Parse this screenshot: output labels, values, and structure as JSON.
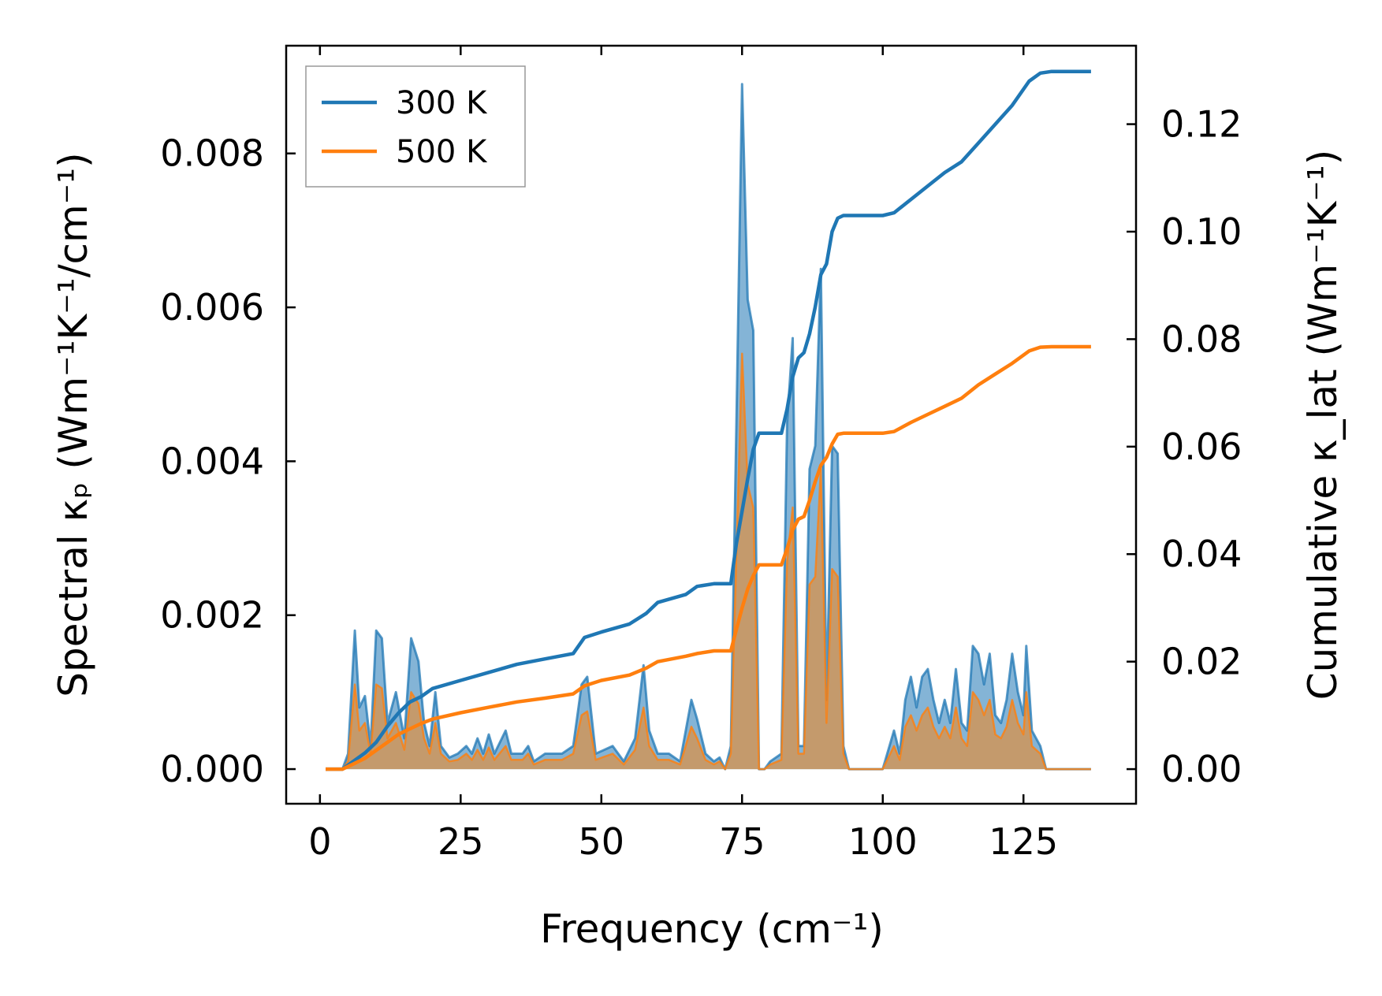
{
  "chart_data": {
    "type": "area",
    "xlabel": "Frequency (cm⁻¹)",
    "ylabel_left": "Spectral κₚ (Wm⁻¹K⁻¹/cm⁻¹)",
    "ylabel_right": "Cumulative κ_lat (Wm⁻¹K⁻¹)",
    "xlim": [
      -6,
      145
    ],
    "ylim_left": [
      -0.00045,
      0.0094
    ],
    "ylim_right": [
      -0.00644,
      0.1346
    ],
    "xticks": [
      0,
      25,
      50,
      75,
      100,
      125
    ],
    "xtick_labels": [
      "0",
      "25",
      "50",
      "75",
      "100",
      "125"
    ],
    "yticks_left": [
      0.0,
      0.002,
      0.004,
      0.006,
      0.008
    ],
    "ytick_labels_left": [
      "0.000",
      "0.002",
      "0.004",
      "0.006",
      "0.008"
    ],
    "yticks_right": [
      0.0,
      0.02,
      0.04,
      0.06,
      0.08,
      0.1,
      0.12
    ],
    "ytick_labels_right": [
      "0.00",
      "0.02",
      "0.04",
      "0.06",
      "0.08",
      "0.10",
      "0.12"
    ],
    "legend": {
      "position": "top-left",
      "entries": [
        "300 K",
        "500 K"
      ]
    },
    "colors": {
      "s300": "#1f77b4",
      "s500": "#ff7f0e",
      "fill500": "#c49a6c"
    },
    "spectral_300K": [
      [
        1,
        0
      ],
      [
        4,
        0
      ],
      [
        5,
        0.0002
      ],
      [
        6.2,
        0.0018
      ],
      [
        7,
        0.0008
      ],
      [
        8,
        0.00095
      ],
      [
        9,
        0.0003
      ],
      [
        10,
        0.0018
      ],
      [
        11,
        0.0017
      ],
      [
        12,
        0.0006
      ],
      [
        13.5,
        0.001
      ],
      [
        15,
        0.0004
      ],
      [
        16.2,
        0.0017
      ],
      [
        17.5,
        0.0014
      ],
      [
        18.5,
        0.0006
      ],
      [
        19.5,
        0.0003
      ],
      [
        20.5,
        0.001
      ],
      [
        21.5,
        0.0003
      ],
      [
        23,
        0.00015
      ],
      [
        24.5,
        0.0002
      ],
      [
        26,
        0.0003
      ],
      [
        27,
        0.0002
      ],
      [
        28,
        0.0004
      ],
      [
        29,
        0.0002
      ],
      [
        30,
        0.00045
      ],
      [
        31,
        0.0002
      ],
      [
        33,
        0.0005
      ],
      [
        34,
        0.0002
      ],
      [
        36,
        0.0002
      ],
      [
        37,
        0.0003
      ],
      [
        38,
        0.0001
      ],
      [
        40,
        0.0002
      ],
      [
        43,
        0.0002
      ],
      [
        45,
        0.0003
      ],
      [
        46.5,
        0.0011
      ],
      [
        47.5,
        0.0012
      ],
      [
        49,
        0.0002
      ],
      [
        52,
        0.0003
      ],
      [
        54,
        0.0001
      ],
      [
        56,
        0.0004
      ],
      [
        57.5,
        0.00135
      ],
      [
        58.5,
        0.0005
      ],
      [
        60,
        0.0002
      ],
      [
        62,
        0.0002
      ],
      [
        64,
        0.0001
      ],
      [
        66,
        0.0009
      ],
      [
        67,
        0.00065
      ],
      [
        68.5,
        0.0002
      ],
      [
        70,
        0.0001
      ],
      [
        71,
        0.00015
      ],
      [
        72,
        0
      ],
      [
        73,
        0.0003
      ],
      [
        74,
        0.0045
      ],
      [
        75,
        0.0089
      ],
      [
        76,
        0.0061
      ],
      [
        77,
        0.0057
      ],
      [
        78,
        0
      ],
      [
        79,
        0
      ],
      [
        80,
        0.0001
      ],
      [
        82,
        0.0002
      ],
      [
        83,
        0.0045
      ],
      [
        84,
        0.0056
      ],
      [
        85,
        0.0003
      ],
      [
        86,
        0.0003
      ],
      [
        87,
        0.0039
      ],
      [
        88,
        0.0042
      ],
      [
        89,
        0.0065
      ],
      [
        90,
        0.0009
      ],
      [
        91,
        0.0042
      ],
      [
        92,
        0.0041
      ],
      [
        93,
        0.0003
      ],
      [
        94,
        0
      ],
      [
        100,
        0
      ],
      [
        102,
        0.0005
      ],
      [
        103,
        0.0002
      ],
      [
        104,
        0.0009
      ],
      [
        105,
        0.0012
      ],
      [
        106,
        0.0008
      ],
      [
        107,
        0.0012
      ],
      [
        108,
        0.0013
      ],
      [
        109,
        0.0009
      ],
      [
        110,
        0.0006
      ],
      [
        111,
        0.0009
      ],
      [
        112,
        0.0006
      ],
      [
        113,
        0.0013
      ],
      [
        114,
        0.0006
      ],
      [
        115,
        0.0005
      ],
      [
        116,
        0.0016
      ],
      [
        117,
        0.0015
      ],
      [
        118,
        0.0011
      ],
      [
        119,
        0.0015
      ],
      [
        120,
        0.0007
      ],
      [
        121,
        0.0006
      ],
      [
        122,
        0.0009
      ],
      [
        123,
        0.0015
      ],
      [
        124,
        0.001
      ],
      [
        125,
        0.0007
      ],
      [
        125.5,
        0.0016
      ],
      [
        126.5,
        0.0005
      ],
      [
        128,
        0.0003
      ],
      [
        129,
        0
      ],
      [
        137,
        0
      ]
    ],
    "spectral_500K": [
      [
        1,
        0
      ],
      [
        4,
        0
      ],
      [
        5,
        0.0001
      ],
      [
        6.2,
        0.0011
      ],
      [
        7,
        0.0005
      ],
      [
        8,
        0.0006
      ],
      [
        9,
        0.0002
      ],
      [
        10,
        0.0011
      ],
      [
        11,
        0.00105
      ],
      [
        12,
        0.0004
      ],
      [
        13.5,
        0.0006
      ],
      [
        15,
        0.00025
      ],
      [
        16.2,
        0.001
      ],
      [
        17.5,
        0.00085
      ],
      [
        18.5,
        0.0004
      ],
      [
        19.5,
        0.0002
      ],
      [
        20.5,
        0.0006
      ],
      [
        21.5,
        0.0002
      ],
      [
        23,
        0.0001
      ],
      [
        24.5,
        0.00012
      ],
      [
        26,
        0.0002
      ],
      [
        27,
        0.00012
      ],
      [
        28,
        0.00025
      ],
      [
        29,
        0.00012
      ],
      [
        30,
        0.00028
      ],
      [
        31,
        0.00012
      ],
      [
        33,
        0.0003
      ],
      [
        34,
        0.00012
      ],
      [
        36,
        0.00012
      ],
      [
        37,
        0.0002
      ],
      [
        38,
        6e-05
      ],
      [
        40,
        0.00012
      ],
      [
        43,
        0.00012
      ],
      [
        45,
        0.0002
      ],
      [
        46.5,
        0.0007
      ],
      [
        47.5,
        0.00075
      ],
      [
        49,
        0.00012
      ],
      [
        52,
        0.0002
      ],
      [
        54,
        6e-05
      ],
      [
        56,
        0.00025
      ],
      [
        57.5,
        0.0008
      ],
      [
        58.5,
        0.0003
      ],
      [
        60,
        0.00012
      ],
      [
        62,
        0.00012
      ],
      [
        64,
        6e-05
      ],
      [
        66,
        0.00055
      ],
      [
        67,
        0.0004
      ],
      [
        68.5,
        0.00012
      ],
      [
        70,
        6e-05
      ],
      [
        71,
        0.0001
      ],
      [
        72,
        0
      ],
      [
        73,
        0.0002
      ],
      [
        74,
        0.0028
      ],
      [
        75,
        0.0054
      ],
      [
        76,
        0.0037
      ],
      [
        77,
        0.0034
      ],
      [
        78,
        0
      ],
      [
        79,
        0
      ],
      [
        80,
        6e-05
      ],
      [
        82,
        0.00012
      ],
      [
        83,
        0.0027
      ],
      [
        84,
        0.0034
      ],
      [
        85,
        0.0002
      ],
      [
        86,
        0.0002
      ],
      [
        87,
        0.0024
      ],
      [
        88,
        0.0025
      ],
      [
        89,
        0.0039
      ],
      [
        90,
        0.0006
      ],
      [
        91,
        0.0026
      ],
      [
        92,
        0.0025
      ],
      [
        93,
        0.0002
      ],
      [
        94,
        0
      ],
      [
        100,
        0
      ],
      [
        102,
        0.0003
      ],
      [
        103,
        0.00012
      ],
      [
        104,
        0.00055
      ],
      [
        105,
        0.0007
      ],
      [
        106,
        0.0005
      ],
      [
        107,
        0.0007
      ],
      [
        108,
        0.0008
      ],
      [
        109,
        0.00055
      ],
      [
        110,
        0.0004
      ],
      [
        111,
        0.00055
      ],
      [
        112,
        0.0004
      ],
      [
        113,
        0.0008
      ],
      [
        114,
        0.0004
      ],
      [
        115,
        0.0003
      ],
      [
        116,
        0.001
      ],
      [
        117,
        0.0009
      ],
      [
        118,
        0.0007
      ],
      [
        119,
        0.0009
      ],
      [
        120,
        0.00045
      ],
      [
        121,
        0.0004
      ],
      [
        122,
        0.00055
      ],
      [
        123,
        0.0009
      ],
      [
        124,
        0.0006
      ],
      [
        125,
        0.00045
      ],
      [
        125.5,
        0.001
      ],
      [
        126.5,
        0.0003
      ],
      [
        128,
        0.0002
      ],
      [
        129,
        0
      ],
      [
        137,
        0
      ]
    ],
    "cumulative_300K": [
      [
        1,
        0
      ],
      [
        4,
        0
      ],
      [
        6,
        0.0015
      ],
      [
        8,
        0.003
      ],
      [
        10,
        0.005
      ],
      [
        12,
        0.008
      ],
      [
        14,
        0.0105
      ],
      [
        16,
        0.0125
      ],
      [
        18,
        0.0135
      ],
      [
        20,
        0.015
      ],
      [
        25,
        0.0165
      ],
      [
        30,
        0.018
      ],
      [
        35,
        0.0195
      ],
      [
        40,
        0.0205
      ],
      [
        45,
        0.0215
      ],
      [
        47,
        0.0245
      ],
      [
        50,
        0.0255
      ],
      [
        55,
        0.027
      ],
      [
        58,
        0.029
      ],
      [
        60,
        0.031
      ],
      [
        65,
        0.0325
      ],
      [
        67,
        0.034
      ],
      [
        70,
        0.0345
      ],
      [
        73,
        0.0345
      ],
      [
        74,
        0.042
      ],
      [
        75,
        0.048
      ],
      [
        76,
        0.054
      ],
      [
        77,
        0.0595
      ],
      [
        78,
        0.0625
      ],
      [
        79,
        0.0625
      ],
      [
        82,
        0.0625
      ],
      [
        83,
        0.067
      ],
      [
        84,
        0.073
      ],
      [
        85,
        0.0765
      ],
      [
        86,
        0.0775
      ],
      [
        87,
        0.081
      ],
      [
        88,
        0.086
      ],
      [
        89,
        0.092
      ],
      [
        90,
        0.094
      ],
      [
        91,
        0.1
      ],
      [
        92,
        0.1025
      ],
      [
        93,
        0.103
      ],
      [
        100,
        0.103
      ],
      [
        102,
        0.1035
      ],
      [
        105,
        0.106
      ],
      [
        108,
        0.1085
      ],
      [
        111,
        0.111
      ],
      [
        114,
        0.113
      ],
      [
        117,
        0.1165
      ],
      [
        120,
        0.12
      ],
      [
        123,
        0.1235
      ],
      [
        126,
        0.128
      ],
      [
        128,
        0.1295
      ],
      [
        130,
        0.1298
      ],
      [
        137,
        0.1298
      ]
    ],
    "cumulative_500K": [
      [
        1,
        0
      ],
      [
        4,
        0
      ],
      [
        6,
        0.001
      ],
      [
        8,
        0.002
      ],
      [
        10,
        0.0035
      ],
      [
        12,
        0.005
      ],
      [
        14,
        0.0065
      ],
      [
        16,
        0.0075
      ],
      [
        18,
        0.0085
      ],
      [
        20,
        0.0093
      ],
      [
        25,
        0.0105
      ],
      [
        30,
        0.0115
      ],
      [
        35,
        0.0125
      ],
      [
        40,
        0.0132
      ],
      [
        45,
        0.014
      ],
      [
        47,
        0.0155
      ],
      [
        50,
        0.0165
      ],
      [
        55,
        0.0175
      ],
      [
        58,
        0.0188
      ],
      [
        60,
        0.02
      ],
      [
        65,
        0.021
      ],
      [
        67,
        0.0215
      ],
      [
        70,
        0.022
      ],
      [
        73,
        0.022
      ],
      [
        74,
        0.026
      ],
      [
        75,
        0.03
      ],
      [
        76,
        0.0335
      ],
      [
        77,
        0.036
      ],
      [
        78,
        0.038
      ],
      [
        79,
        0.038
      ],
      [
        82,
        0.038
      ],
      [
        83,
        0.041
      ],
      [
        84,
        0.0445
      ],
      [
        85,
        0.0465
      ],
      [
        86,
        0.047
      ],
      [
        87,
        0.05
      ],
      [
        88,
        0.0535
      ],
      [
        89,
        0.0565
      ],
      [
        90,
        0.058
      ],
      [
        91,
        0.0605
      ],
      [
        92,
        0.0623
      ],
      [
        93,
        0.0625
      ],
      [
        100,
        0.0625
      ],
      [
        102,
        0.0628
      ],
      [
        105,
        0.0645
      ],
      [
        108,
        0.066
      ],
      [
        111,
        0.0675
      ],
      [
        114,
        0.069
      ],
      [
        117,
        0.0715
      ],
      [
        120,
        0.0735
      ],
      [
        123,
        0.0755
      ],
      [
        126,
        0.0778
      ],
      [
        128,
        0.0785
      ],
      [
        130,
        0.0786
      ],
      [
        137,
        0.0786
      ]
    ]
  }
}
